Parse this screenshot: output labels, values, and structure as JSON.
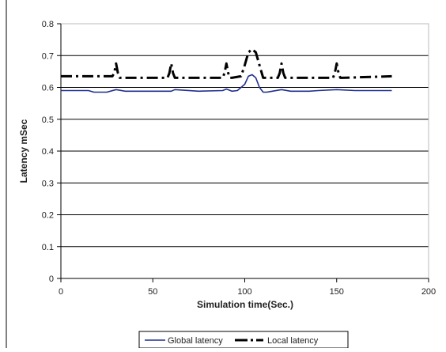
{
  "chart_data": {
    "type": "line",
    "title": "",
    "xlabel": "Simulation time(Sec.)",
    "ylabel": "Latency mSec",
    "xlim": [
      0,
      200
    ],
    "ylim": [
      0,
      0.8
    ],
    "x_ticks": [
      0,
      50,
      100,
      150,
      200
    ],
    "x_tick_labels": [
      "0",
      "50",
      "100",
      "150",
      "200"
    ],
    "y_ticks": [
      0,
      0.1,
      0.2,
      0.3,
      0.4,
      0.5,
      0.6,
      0.7,
      0.8
    ],
    "y_tick_labels": [
      "0",
      "0.1",
      "0.2",
      "0.3",
      "0.4",
      "0.5",
      "0.6",
      "0.7",
      "0.8"
    ],
    "grid": "horizontal",
    "legend_position": "bottom",
    "series": [
      {
        "name": "Global latency",
        "color": "#1f2f8f",
        "style": "solid",
        "x": [
          0,
          15,
          18,
          25,
          30,
          35,
          45,
          60,
          62,
          75,
          88,
          90,
          93,
          96,
          100,
          102,
          104,
          106,
          108,
          110,
          112,
          115,
          120,
          125,
          135,
          140,
          150,
          160,
          170,
          180
        ],
        "y": [
          0.59,
          0.59,
          0.585,
          0.585,
          0.593,
          0.588,
          0.588,
          0.588,
          0.593,
          0.588,
          0.59,
          0.595,
          0.588,
          0.59,
          0.61,
          0.635,
          0.64,
          0.63,
          0.6,
          0.585,
          0.585,
          0.588,
          0.593,
          0.588,
          0.588,
          0.59,
          0.593,
          0.59,
          0.59,
          0.59
        ]
      },
      {
        "name": "Local latency",
        "color": "#000000",
        "style": "dashdot",
        "x": [
          0,
          28,
          29,
          30,
          31,
          32,
          33,
          58,
          59,
          60,
          61,
          62,
          63,
          88,
          89,
          90,
          91,
          92,
          93,
          98,
          100,
          102,
          104,
          106,
          108,
          110,
          118,
          119,
          120,
          121,
          122,
          123,
          148,
          149,
          150,
          151,
          152,
          153,
          180
        ],
        "y": [
          0.635,
          0.635,
          0.645,
          0.675,
          0.645,
          0.63,
          0.63,
          0.63,
          0.645,
          0.675,
          0.645,
          0.63,
          0.63,
          0.63,
          0.645,
          0.675,
          0.645,
          0.63,
          0.63,
          0.635,
          0.67,
          0.71,
          0.72,
          0.71,
          0.67,
          0.63,
          0.63,
          0.645,
          0.675,
          0.645,
          0.63,
          0.63,
          0.63,
          0.645,
          0.675,
          0.645,
          0.63,
          0.63,
          0.635
        ]
      }
    ]
  }
}
